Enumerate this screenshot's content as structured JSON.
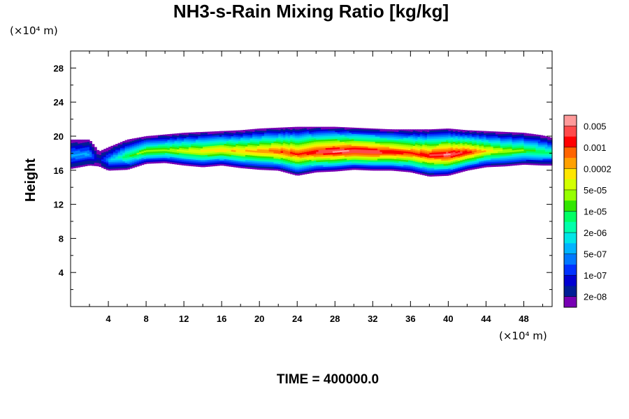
{
  "chart_data": {
    "type": "heatmap",
    "title": "NH3-s-Rain Mixing Ratio [kg/kg]",
    "ylabel": "Height",
    "x_unit": "(×10⁴ m)",
    "y_unit": "(×10⁴ m)",
    "footer": "TIME = 400000.0",
    "xlim": [
      0,
      51
    ],
    "ylim": [
      0,
      30
    ],
    "x_ticks": [
      "4",
      "8",
      "12",
      "16",
      "20",
      "24",
      "28",
      "32",
      "36",
      "40",
      "44",
      "48"
    ],
    "x_tick_values": [
      4,
      8,
      12,
      16,
      20,
      24,
      28,
      32,
      36,
      40,
      44,
      48
    ],
    "y_ticks": [
      "4",
      "8",
      "12",
      "16",
      "20",
      "24",
      "28"
    ],
    "y_tick_values": [
      4,
      8,
      12,
      16,
      20,
      24,
      28
    ],
    "colorbar": {
      "labels": [
        "0.005",
        "0.001",
        "0.0002",
        "5e-05",
        "1e-05",
        "2e-06",
        "5e-07",
        "1e-07",
        "2e-08"
      ],
      "colors": [
        "#ff9a9a",
        "#ff4a4a",
        "#ff0000",
        "#ff6400",
        "#ffa000",
        "#ffe600",
        "#d2ff00",
        "#96ff00",
        "#32e600",
        "#00ff64",
        "#00ffaa",
        "#00e6e6",
        "#00b4ff",
        "#0078ff",
        "#0032ff",
        "#0000d2",
        "#001e96",
        "#7800b4"
      ]
    },
    "band": {
      "description": "cloud layer between heights ~15.5 and ~21 (x10^4 m) across full domain; maximum (>0.005) around x=22-43",
      "x": [
        0,
        2,
        3,
        4,
        6,
        8,
        10,
        12,
        14,
        16,
        18,
        20,
        22,
        24,
        26,
        28,
        30,
        32,
        34,
        36,
        38,
        40,
        42,
        44,
        46,
        48,
        50,
        51
      ],
      "bottom": [
        16.2,
        16.6,
        16.5,
        16.0,
        16.1,
        16.8,
        16.9,
        16.6,
        16.4,
        16.6,
        16.3,
        16.1,
        16.0,
        15.4,
        15.8,
        15.9,
        16.1,
        16.0,
        16.0,
        15.8,
        15.3,
        15.4,
        16.0,
        16.4,
        16.5,
        16.7,
        16.6,
        16.6
      ],
      "top": [
        19.6,
        19.6,
        18.2,
        18.7,
        19.6,
        20.0,
        20.2,
        20.4,
        20.5,
        20.6,
        20.7,
        20.9,
        21.0,
        21.1,
        21.1,
        21.1,
        21.0,
        20.9,
        20.8,
        20.8,
        20.8,
        20.9,
        20.7,
        20.6,
        20.5,
        20.4,
        20.1,
        19.8
      ],
      "peak": [
        0.3,
        0.3,
        0.1,
        0.3,
        0.5,
        0.6,
        0.6,
        0.65,
        0.7,
        0.72,
        0.74,
        0.78,
        0.84,
        0.86,
        0.92,
        0.97,
        0.96,
        0.95,
        0.9,
        0.86,
        0.9,
        0.97,
        0.9,
        0.72,
        0.62,
        0.56,
        0.5,
        0.45
      ]
    }
  }
}
